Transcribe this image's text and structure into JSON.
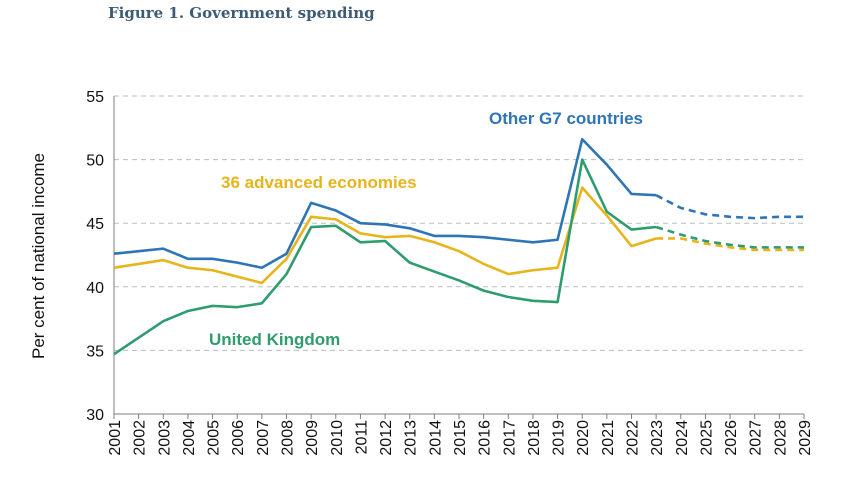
{
  "figure_title": "Figure 1. Government spending",
  "chart_data": {
    "type": "line",
    "title": "Figure 1. Government spending",
    "xlabel": "",
    "ylabel": "Per cent of national income",
    "ylim": [
      30,
      55
    ],
    "yticks": [
      30,
      35,
      40,
      45,
      50,
      55
    ],
    "grid": "horizontal dashed",
    "forecast_start": "2023",
    "categories": [
      "2001",
      "2002",
      "2003",
      "2004",
      "2005",
      "2006",
      "2007",
      "2008",
      "2009",
      "2010",
      "2011",
      "2012",
      "2013",
      "2014",
      "2015",
      "2016",
      "2017",
      "2018",
      "2019",
      "2020",
      "2021",
      "2022",
      "2023",
      "2024",
      "2025",
      "2026",
      "2027",
      "2028",
      "2029"
    ],
    "series": [
      {
        "name": "Other G7 countries",
        "color": "#2e75b6",
        "values": [
          42.6,
          42.8,
          43.0,
          42.2,
          42.2,
          41.9,
          41.5,
          42.6,
          46.6,
          46.0,
          45.0,
          44.9,
          44.6,
          44.0,
          44.0,
          43.9,
          43.7,
          43.5,
          43.7,
          51.6,
          49.6,
          47.3,
          47.2,
          46.2,
          45.7,
          45.5,
          45.4,
          45.5,
          45.5
        ]
      },
      {
        "name": "36 advanced economies",
        "color": "#e8b41b",
        "values": [
          41.5,
          41.8,
          42.1,
          41.5,
          41.3,
          40.8,
          40.3,
          42.2,
          45.5,
          45.3,
          44.2,
          43.9,
          44.0,
          43.5,
          42.8,
          41.8,
          41.0,
          41.3,
          41.5,
          47.8,
          45.6,
          43.2,
          43.8,
          43.8,
          43.4,
          43.1,
          42.9,
          42.9,
          42.9
        ]
      },
      {
        "name": "United Kingdom",
        "color": "#2f9c6f",
        "values": [
          34.7,
          36.0,
          37.3,
          38.1,
          38.5,
          38.4,
          38.7,
          41.0,
          44.7,
          44.8,
          43.5,
          43.6,
          41.9,
          41.2,
          40.5,
          39.7,
          39.2,
          38.9,
          38.8,
          50.0,
          45.9,
          44.5,
          44.7,
          44.1,
          43.6,
          43.3,
          43.1,
          43.1,
          43.1
        ]
      }
    ],
    "annotations": [
      {
        "series": "Other G7 countries",
        "text": "Other G7 countries"
      },
      {
        "series": "36 advanced economies",
        "text": "36 advanced economies"
      },
      {
        "series": "United Kingdom",
        "text": "United Kingdom"
      }
    ]
  }
}
